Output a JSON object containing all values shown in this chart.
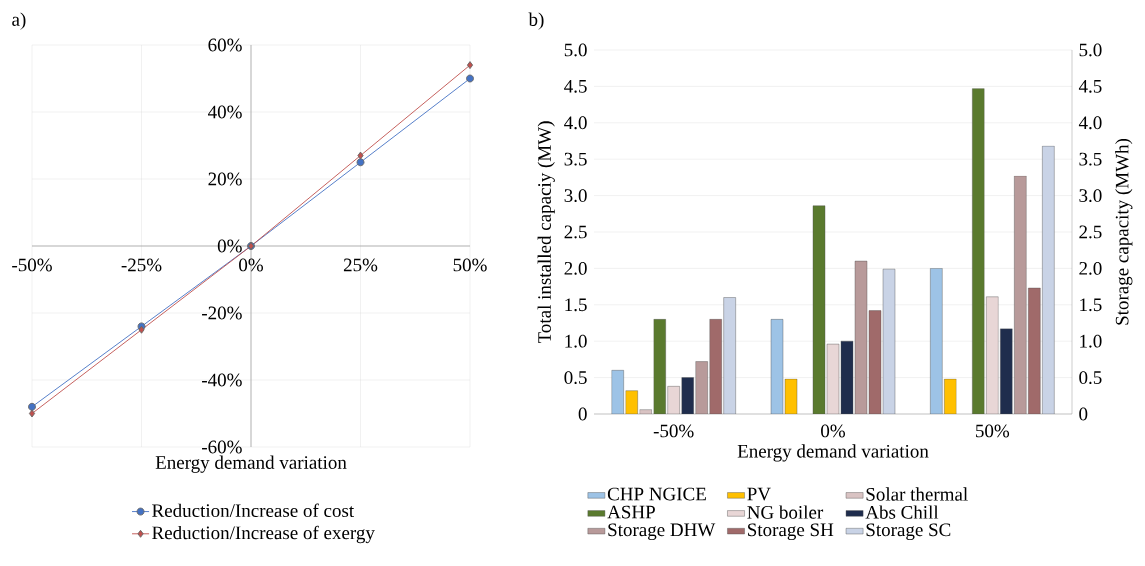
{
  "chart_data": [
    {
      "type": "line",
      "title": "a)",
      "xlabel": "Energy demand variation",
      "x": [
        -50,
        -25,
        0,
        25,
        50
      ],
      "xlim": [
        -50,
        50
      ],
      "xticks": [
        {
          "value": -50,
          "label": "-50%"
        },
        {
          "value": -25,
          "label": "-25%"
        },
        {
          "value": 0,
          "label": "0%"
        },
        {
          "value": 25,
          "label": "25%"
        },
        {
          "value": 50,
          "label": "50%"
        }
      ],
      "ylim": [
        -60,
        60
      ],
      "yticks": [
        {
          "value": -60,
          "label": "-60%"
        },
        {
          "value": -40,
          "label": "-40%"
        },
        {
          "value": -20,
          "label": "-20%"
        },
        {
          "value": 0,
          "label": "0%"
        },
        {
          "value": 20,
          "label": "20%"
        },
        {
          "value": 40,
          "label": "40%"
        },
        {
          "value": 60,
          "label": "60%"
        }
      ],
      "grid": true,
      "legend": "bottom",
      "series": [
        {
          "name": "Reduction/Increase of cost",
          "color": "#4472c4",
          "marker": "circle",
          "values": [
            -48,
            -24,
            0,
            25,
            50
          ]
        },
        {
          "name": "Reduction/Increase of exergy",
          "color": "#c0504d",
          "marker": "diamond",
          "values": [
            -50,
            -25,
            0,
            27,
            54
          ]
        }
      ]
    },
    {
      "type": "bar",
      "title": "b)",
      "xlabel": "Energy demand variation",
      "ylabel": "Total installed capaciy (MW)",
      "y2label": "Storage capacity (MWh)",
      "categories": [
        "-50%",
        "0%",
        "50%"
      ],
      "ylim": [
        0,
        5
      ],
      "yticks": [
        0,
        0.5,
        {
          "value": 1,
          "label": "1.0"
        },
        1.5,
        {
          "value": 2,
          "label": "2.0"
        },
        2.5,
        {
          "value": 3,
          "label": "3.0"
        },
        3.5,
        {
          "value": 4,
          "label": "4.0"
        },
        4.5,
        {
          "value": 5,
          "label": "5.0"
        }
      ],
      "y2lim": [
        0,
        5
      ],
      "y2ticks": [
        0,
        0.5,
        {
          "value": 1,
          "label": "1.0"
        },
        1.5,
        {
          "value": 2,
          "label": "2.0"
        },
        2.5,
        {
          "value": 3,
          "label": "3.0"
        },
        3.5,
        {
          "value": 4,
          "label": "4.0"
        },
        4.5,
        {
          "value": 5,
          "label": "5.0"
        }
      ],
      "grid": "y",
      "legend": "bottom",
      "series": [
        {
          "name": "CHP NGICE",
          "color": "#9dc3e6",
          "values": [
            0.6,
            1.3,
            2.0
          ]
        },
        {
          "name": "PV",
          "color": "#ffc000",
          "values": [
            0.32,
            0.48,
            0.48
          ]
        },
        {
          "name": "Solar thermal",
          "color": "#d9c3c3",
          "values": [
            0.06,
            null,
            null
          ]
        },
        {
          "name": "ASHP",
          "color": "#5a7a2e",
          "values": [
            1.3,
            2.86,
            4.47
          ]
        },
        {
          "name": "NG boiler",
          "color": "#e8d6d6",
          "values": [
            0.38,
            0.96,
            1.61
          ]
        },
        {
          "name": "Abs Chill",
          "color": "#1f2d4d",
          "values": [
            0.5,
            1.0,
            1.17
          ]
        },
        {
          "name": "Storage DHW",
          "color": "#b89a9a",
          "axis": "y2",
          "values": [
            0.72,
            2.1,
            3.27
          ]
        },
        {
          "name": "Storage SH",
          "color": "#a06a6a",
          "axis": "y2",
          "values": [
            1.3,
            1.42,
            1.73
          ]
        },
        {
          "name": "Storage SC",
          "color": "#c9d3e6",
          "axis": "y2",
          "values": [
            1.6,
            1.99,
            3.68
          ]
        }
      ]
    }
  ]
}
